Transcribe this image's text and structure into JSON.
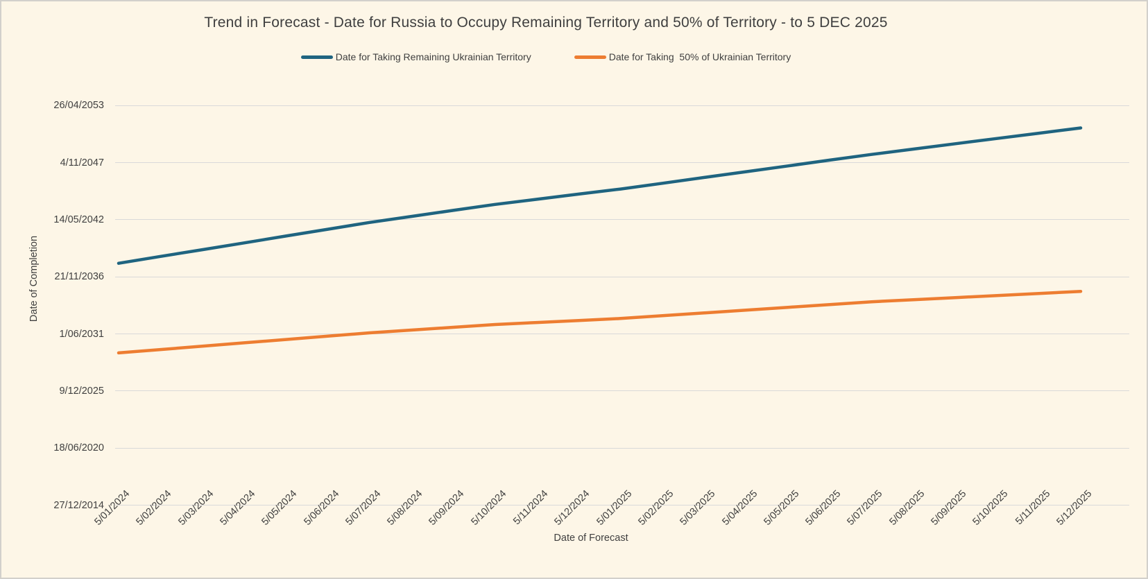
{
  "frame": {
    "background": "#FDF6E7",
    "border_color": "#D2D0CB"
  },
  "chart_data": {
    "type": "line",
    "title": "Trend in Forecast - Date for Russia to Occupy Remaining Territory and 50% of Territory - to 5 DEC 2025",
    "xlabel": "Date of Forecast",
    "ylabel": "Date of Completion",
    "grid": true,
    "legend_position": "top",
    "colors": {
      "gridline": "#D9D9D9",
      "text": "#3F3F3F"
    },
    "y_axis": {
      "min": 2014.99,
      "max": 2053.32,
      "note": "date axis, major unit 2000 days"
    },
    "y_ticks": [
      {
        "label": "26/04/2053",
        "value": 2053.32
      },
      {
        "label": "4/11/2047",
        "value": 2047.84
      },
      {
        "label": "14/05/2042",
        "value": 2042.37
      },
      {
        "label": "21/11/2036",
        "value": 2036.89
      },
      {
        "label": "1/06/2031",
        "value": 2031.41
      },
      {
        "label": "9/12/2025",
        "value": 2025.94
      },
      {
        "label": "18/06/2020",
        "value": 2020.46
      },
      {
        "label": "27/12/2014",
        "value": 2014.99
      }
    ],
    "x_categories": [
      "5/01/2024",
      "5/02/2024",
      "5/03/2024",
      "5/04/2024",
      "5/05/2024",
      "5/06/2024",
      "5/07/2024",
      "5/08/2024",
      "5/09/2024",
      "5/10/2024",
      "5/11/2024",
      "5/12/2024",
      "5/01/2025",
      "5/02/2025",
      "5/03/2025",
      "5/04/2025",
      "5/05/2025",
      "5/06/2025",
      "5/07/2025",
      "5/08/2025",
      "5/09/2025",
      "5/10/2025",
      "5/11/2025",
      "5/12/2025"
    ],
    "series": [
      {
        "name": "Date for Taking Remaining Ukrainian Territory",
        "color": "#1F6480",
        "values": [
          2038.19,
          2038.85,
          2039.5,
          2040.15,
          2040.81,
          2041.46,
          2042.11,
          2042.69,
          2043.27,
          2043.84,
          2044.33,
          2044.83,
          2045.32,
          2045.87,
          2046.43,
          2046.98,
          2047.53,
          2048.09,
          2048.64,
          2049.15,
          2049.66,
          2050.17,
          2050.67,
          2051.18
        ]
      },
      {
        "name": "Date for Taking  50% of Ukrainian Territory",
        "color": "#ED7D31",
        "values": [
          2029.6,
          2029.92,
          2030.24,
          2030.56,
          2030.88,
          2031.2,
          2031.52,
          2031.79,
          2032.05,
          2032.32,
          2032.51,
          2032.7,
          2032.9,
          2033.17,
          2033.43,
          2033.7,
          2033.97,
          2034.23,
          2034.5,
          2034.7,
          2034.9,
          2035.1,
          2035.3,
          2035.5
        ]
      }
    ]
  }
}
